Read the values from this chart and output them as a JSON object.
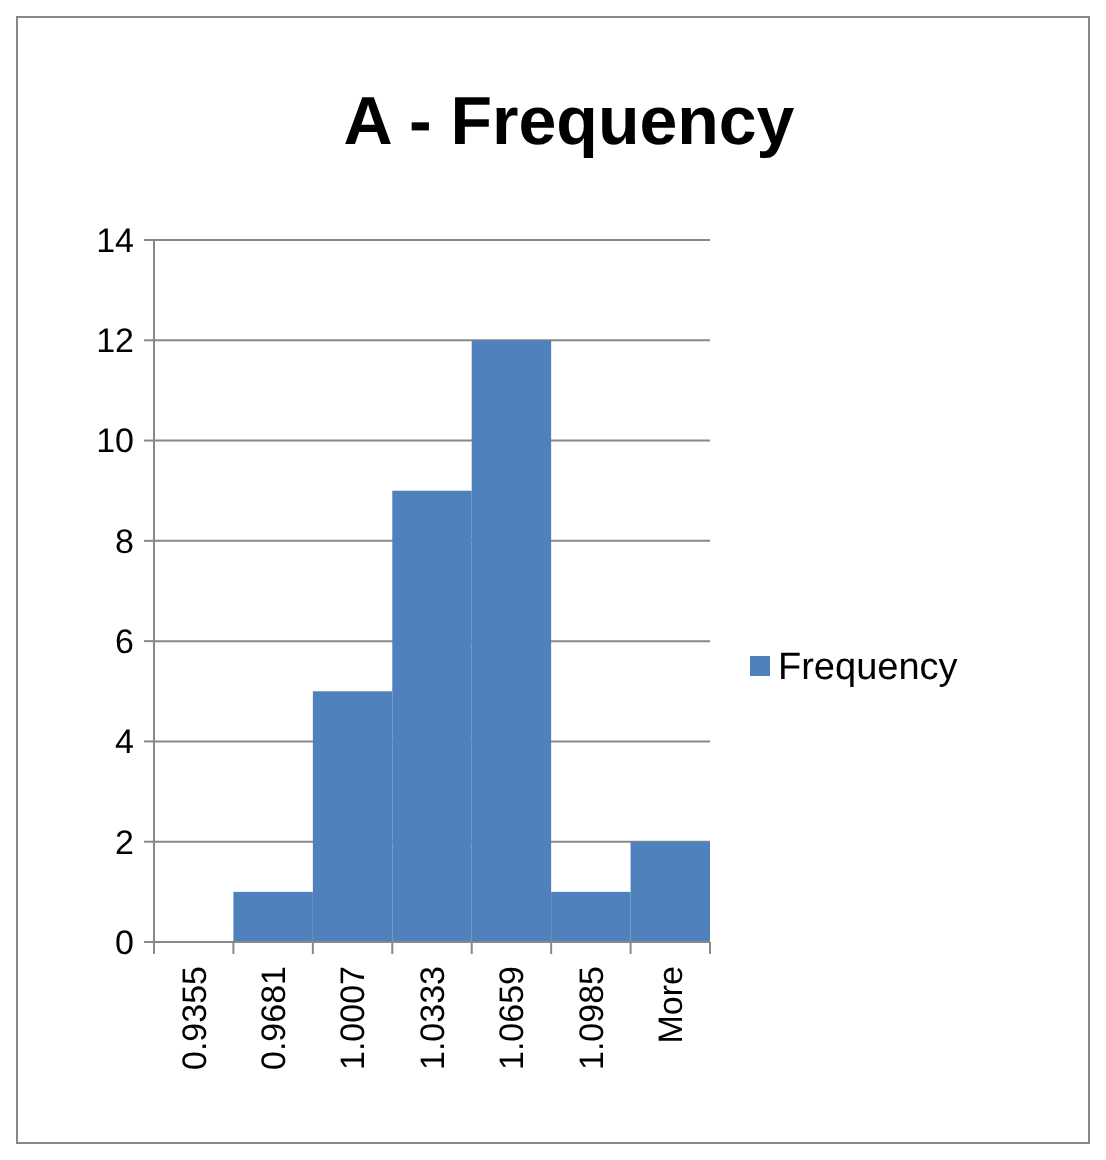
{
  "chart_data": {
    "type": "bar",
    "title": "A - Frequency",
    "categories": [
      "0.9355",
      "0.9681",
      "1.0007",
      "1.0333",
      "1.0659",
      "1.0985",
      "More"
    ],
    "series": [
      {
        "name": "Frequency",
        "color": "#4f81bd",
        "values": [
          0,
          1,
          5,
          9,
          12,
          1,
          2
        ]
      }
    ],
    "ylim": [
      0,
      14
    ],
    "yticks": [
      0,
      2,
      4,
      6,
      8,
      10,
      12,
      14
    ],
    "grid": "y",
    "legend": "right"
  }
}
